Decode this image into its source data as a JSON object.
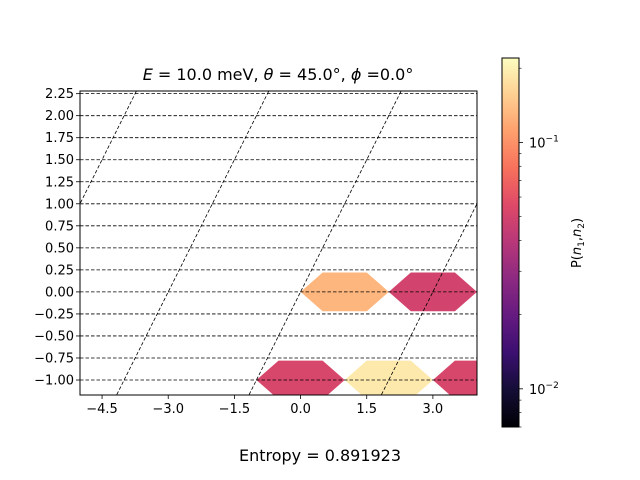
{
  "chart_data": {
    "type": "heatmap",
    "title": "E = 10.0 meV, θ = 45.0°, ϕ =0.0°",
    "title_parts": {
      "e_symbol": "E",
      "e_value": " = 10.0 meV, ",
      "theta_symbol": "θ",
      "theta_value": " = 45.0°, ",
      "phi_symbol": "ϕ",
      "phi_value": " =0.0°"
    },
    "xlim": [
      -5.0,
      4.0
    ],
    "ylim": [
      -1.17,
      2.28
    ],
    "x_ticks": [
      -4.5,
      -3.0,
      -1.5,
      0.0,
      1.5,
      3.0
    ],
    "x_tick_labels": [
      "−4.5",
      "−3.0",
      "−1.5",
      "0.0",
      "1.5",
      "3.0"
    ],
    "y_ticks": [
      -1.0,
      -0.75,
      -0.5,
      -0.25,
      0.0,
      0.25,
      0.5,
      0.75,
      1.0,
      1.25,
      1.5,
      1.75,
      2.0,
      2.25
    ],
    "y_tick_labels": [
      "−1.00",
      "−0.75",
      "−0.50",
      "−0.25",
      "0.00",
      "0.25",
      "0.50",
      "0.75",
      "1.00",
      "1.25",
      "1.50",
      "1.75",
      "2.00",
      "2.25"
    ],
    "grid": {
      "horizontal_lines_y": [
        -1.0,
        -0.75,
        -0.5,
        -0.25,
        0.0,
        0.25,
        0.5,
        0.75,
        1.0,
        1.25,
        1.5,
        1.75,
        2.0,
        2.25
      ],
      "oblique_lines_x_intercept_at_y0": [
        -12.0,
        -9.0,
        -6.0,
        -3.0,
        0.0,
        3.0,
        6.0,
        9.0
      ],
      "oblique_slope": 1.0
    },
    "hexbins": [
      {
        "x": 1.0,
        "y": 0.0,
        "value": 0.13
      },
      {
        "x": 3.0,
        "y": 0.0,
        "value": 0.05
      },
      {
        "x": 0.0,
        "y": -1.0,
        "value": 0.052
      },
      {
        "x": 2.0,
        "y": -1.0,
        "value": 0.19
      },
      {
        "x": 4.0,
        "y": -1.0,
        "value": 0.052
      }
    ],
    "colorbar": {
      "label": "P(n1,n2)",
      "label_parts": {
        "p": "P(",
        "n": "n",
        "sub1": "1",
        "comma": ",",
        "n2": "n",
        "sub2": "2",
        "close": ")"
      },
      "scale": "log",
      "vmin": 0.007,
      "vmax": 0.22,
      "major_ticks": [
        0.01,
        0.1
      ],
      "tick_bases": [
        "10",
        "10"
      ],
      "tick_exponents": [
        "−2",
        "−1"
      ],
      "colormap": "magma"
    }
  },
  "footer": {
    "entropy_label": "Entropy = 0.891923"
  }
}
